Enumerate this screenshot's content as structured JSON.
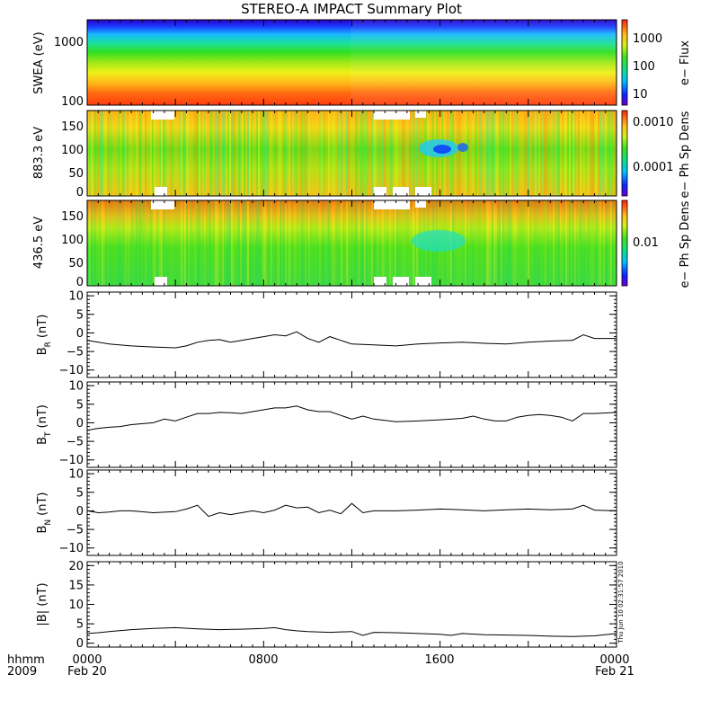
{
  "chart_data": {
    "title": "STEREO-A IMPACT Summary Plot",
    "timestamp": "Thu Jun 10 02:31:57 2010",
    "time_axis": {
      "label_row1": "hhmm",
      "label_row2": "2009",
      "xlim_hours": [
        0,
        24
      ],
      "ticks": [
        {
          "hour": 0,
          "time": "0000",
          "date": "Feb 20"
        },
        {
          "hour": 8,
          "time": "0800",
          "date": ""
        },
        {
          "hour": 16,
          "time": "1600",
          "date": ""
        },
        {
          "hour": 24,
          "time": "0000",
          "date": "Feb 21"
        }
      ]
    },
    "spectrograms": [
      {
        "type": "heatmap",
        "ylabel": "SWEA (eV)",
        "yscale": "log",
        "yticks": [
          "1000",
          "100"
        ],
        "colorbar_label": "e− Flux",
        "colorbar_ticks": [
          "1000",
          "100",
          "10"
        ]
      },
      {
        "type": "heatmap",
        "ylabel": "883.3 eV",
        "ylim": [
          0,
          180
        ],
        "yticks": [
          "150",
          "100",
          "50",
          "0"
        ],
        "colorbar_label": "e− Ph Sp Dens",
        "colorbar_ticks": [
          "0.0010",
          "0.0001"
        ]
      },
      {
        "type": "heatmap",
        "ylabel": "436.5 eV",
        "ylim": [
          0,
          180
        ],
        "yticks": [
          "150",
          "100",
          "50",
          "0"
        ],
        "colorbar_label": "e− Ph Sp Dens",
        "colorbar_ticks": [
          "0.01"
        ]
      }
    ],
    "line_panels": [
      {
        "type": "line",
        "ylabel": "B",
        "ylabel_sub": "R",
        "ylabel_unit": "(nT)",
        "ylim": [
          -12,
          11
        ],
        "yticks": [
          "10",
          "5",
          "0",
          "−5",
          "−10"
        ],
        "x": [
          0,
          0.5,
          1,
          2,
          3,
          4,
          4.5,
          5,
          5.5,
          6,
          6.5,
          7,
          7.5,
          8,
          8.5,
          9,
          9.5,
          10,
          10.5,
          11,
          11.5,
          12,
          13,
          14,
          15,
          16,
          17,
          18,
          19,
          20,
          21,
          22,
          22.5,
          23,
          24
        ],
        "y": [
          -2,
          -2.5,
          -3,
          -3.5,
          -3.8,
          -4,
          -3.5,
          -2.5,
          -2,
          -1.8,
          -2.5,
          -2,
          -1.5,
          -1,
          -0.5,
          -0.8,
          0.3,
          -1.5,
          -2.5,
          -1,
          -2,
          -3,
          -3.2,
          -3.5,
          -3,
          -2.7,
          -2.5,
          -2.8,
          -3,
          -2.5,
          -2.2,
          -2,
          -0.5,
          -1.5,
          -1.5
        ]
      },
      {
        "type": "line",
        "ylabel": "B",
        "ylabel_sub": "T",
        "ylabel_unit": "(nT)",
        "ylim": [
          -12,
          11
        ],
        "yticks": [
          "10",
          "5",
          "0",
          "−5",
          "−10"
        ],
        "x": [
          0,
          0.5,
          1,
          1.5,
          2,
          3,
          3.5,
          4,
          4.5,
          5,
          5.5,
          6,
          6.5,
          7,
          7.5,
          8,
          8.5,
          9,
          9.5,
          10,
          10.5,
          11,
          11.5,
          12,
          12.5,
          13,
          14,
          15,
          16,
          17,
          17.5,
          18,
          18.5,
          19,
          19.5,
          20,
          20.5,
          21,
          21.5,
          22,
          22.5,
          23,
          24
        ],
        "y": [
          -2,
          -1.5,
          -1.2,
          -1,
          -0.5,
          0,
          1,
          0.5,
          1.5,
          2.5,
          2.5,
          2.8,
          2.7,
          2.5,
          3,
          3.5,
          4,
          4,
          4.5,
          3.5,
          3,
          3,
          2,
          1,
          1.8,
          1,
          0.3,
          0.5,
          0.8,
          1.2,
          1.8,
          1,
          0.5,
          0.5,
          1.5,
          2,
          2.2,
          2,
          1.5,
          0.5,
          2.5,
          2.5,
          2.8
        ]
      },
      {
        "type": "line",
        "ylabel": "B",
        "ylabel_sub": "N",
        "ylabel_unit": "(nT)",
        "ylim": [
          -12,
          11
        ],
        "yticks": [
          "10",
          "5",
          "0",
          "−5",
          "−10"
        ],
        "x": [
          0,
          0.5,
          1,
          1.5,
          2,
          3,
          4,
          4.5,
          5,
          5.5,
          6,
          6.5,
          7,
          7.5,
          8,
          8.5,
          9,
          9.5,
          10,
          10.5,
          11,
          11.5,
          12,
          12.5,
          13,
          14,
          15,
          16,
          17,
          18,
          19,
          20,
          21,
          22,
          22.5,
          23,
          24
        ],
        "y": [
          0,
          -0.5,
          -0.3,
          0,
          0,
          -0.5,
          -0.2,
          0.5,
          1.5,
          -1.5,
          -0.5,
          -1,
          -0.5,
          0,
          -0.5,
          0.2,
          1.5,
          0.8,
          1,
          -0.5,
          0.2,
          -0.8,
          2,
          -0.5,
          0,
          0,
          0.2,
          0.5,
          0.3,
          0,
          0.3,
          0.5,
          0.3,
          0.5,
          1.5,
          0.2,
          0
        ]
      },
      {
        "type": "line",
        "ylabel": "|B| (nT)",
        "ylabel_sub": "",
        "ylabel_unit": "",
        "ylim": [
          -1,
          21
        ],
        "yticks": [
          "20",
          "15",
          "10",
          "5",
          "0"
        ],
        "x": [
          0,
          0.5,
          1,
          2,
          3,
          4,
          5,
          6,
          7,
          8,
          8.5,
          9,
          9.5,
          10,
          11,
          12,
          12.5,
          13,
          14,
          15,
          16,
          16.5,
          17,
          18,
          19,
          20,
          21,
          22,
          23,
          24
        ],
        "y": [
          2.5,
          2.7,
          3,
          3.5,
          3.8,
          4,
          3.7,
          3.5,
          3.6,
          3.8,
          4,
          3.5,
          3.2,
          3,
          2.8,
          3,
          2,
          2.8,
          2.7,
          2.5,
          2.3,
          2,
          2.5,
          2.2,
          2.1,
          2,
          1.8,
          1.7,
          1.9,
          2.5
        ]
      }
    ]
  }
}
